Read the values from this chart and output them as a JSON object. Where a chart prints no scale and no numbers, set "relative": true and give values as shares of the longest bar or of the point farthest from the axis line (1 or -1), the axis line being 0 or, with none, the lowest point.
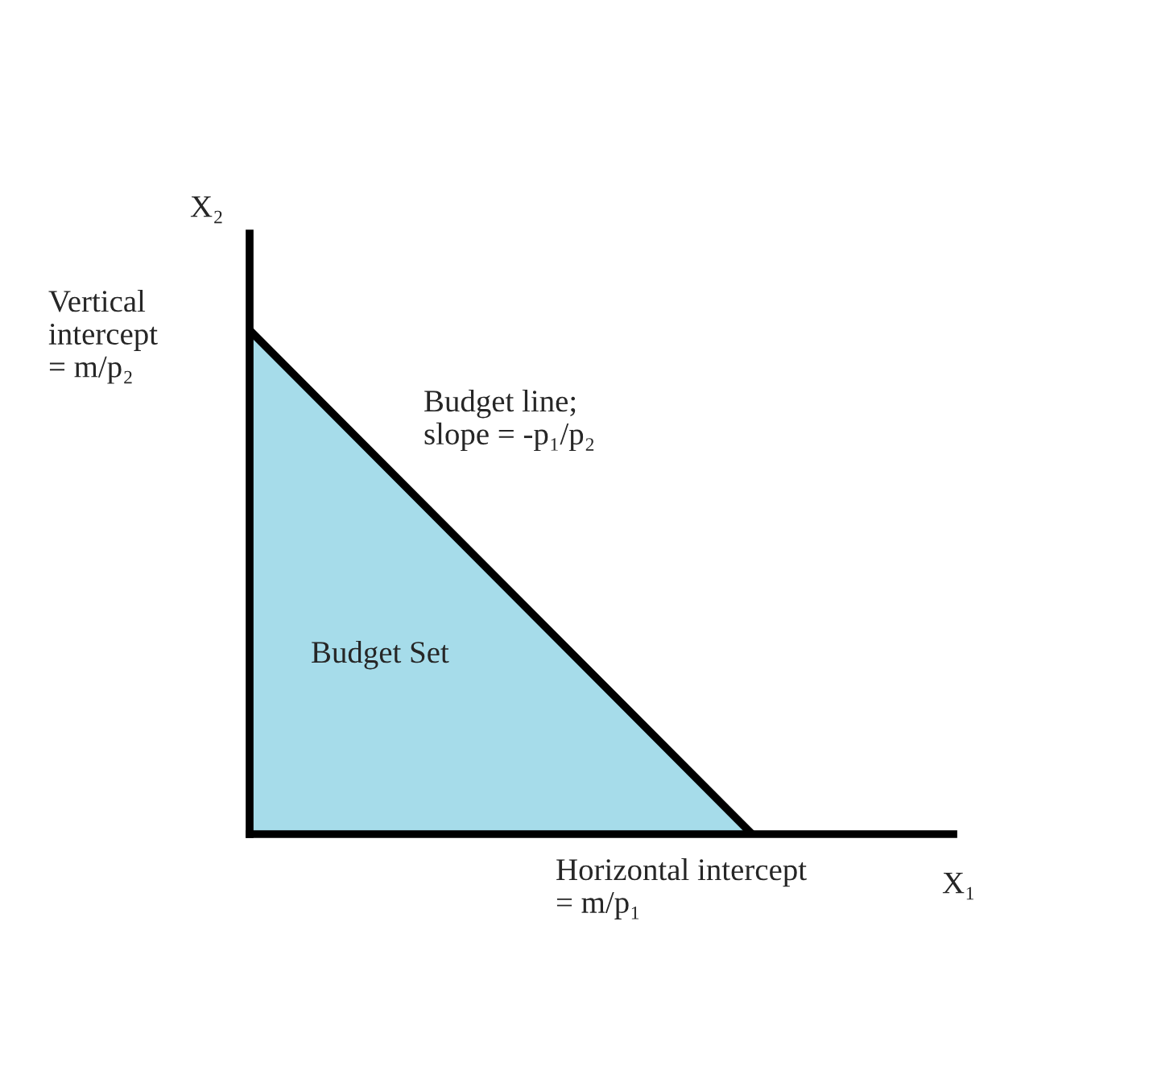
{
  "chart_data": {
    "type": "area",
    "relative": true,
    "categories": [
      null,
      null
    ],
    "xlabel": "X₁",
    "ylabel": "X₂",
    "series": [
      {
        "color": "#a6dcea",
        "values": [
          1,
          0
        ]
      }
    ],
    "annotations": [
      "Vertical\nintercept\n= m/p₂",
      "Budget line;\nslope = -p₁/p₂",
      "Budget Set",
      "Horizontal intercept\n= m/p₁"
    ],
    "grid": false,
    "legend": false
  }
}
